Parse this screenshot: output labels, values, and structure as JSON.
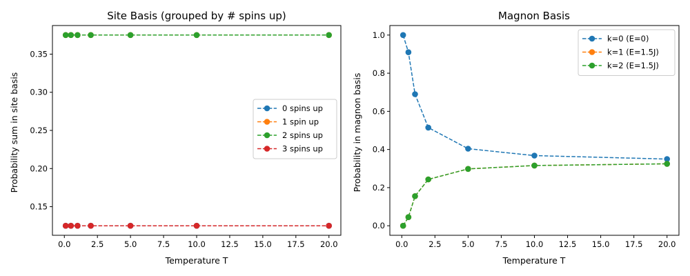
{
  "colors": {
    "blue": "#1f77b4",
    "orange": "#ff7f0e",
    "green": "#2ca02c",
    "red": "#d62728",
    "axes": "#000000",
    "legend_border": "#cccccc",
    "background": "#ffffff"
  },
  "chart_data": [
    {
      "type": "line",
      "title": "Site Basis (grouped by # spins up)",
      "xlabel": "Temperature T",
      "ylabel": "Probability sum in site basis",
      "xlim": [
        -0.9,
        20.9
      ],
      "ylim": [
        0.1125,
        0.3875
      ],
      "xticks": [
        0.0,
        2.5,
        5.0,
        7.5,
        10.0,
        12.5,
        15.0,
        17.5,
        20.0
      ],
      "xtick_labels": [
        "0.0",
        "2.5",
        "5.0",
        "7.5",
        "10.0",
        "12.5",
        "15.0",
        "17.5",
        "20.0"
      ],
      "yticks": [
        0.15,
        0.2,
        0.25,
        0.3,
        0.35
      ],
      "ytick_labels": [
        "0.15",
        "0.20",
        "0.25",
        "0.30",
        "0.35"
      ],
      "grid": false,
      "legend_position": "center-right",
      "x": [
        0.1,
        0.5,
        1.0,
        2.0,
        5.0,
        10.0,
        20.0
      ],
      "series": [
        {
          "name": "0 spins up",
          "color": "#1f77b4",
          "values": [
            0.125,
            0.125,
            0.125,
            0.125,
            0.125,
            0.125,
            0.125
          ]
        },
        {
          "name": "1 spin up",
          "color": "#ff7f0e",
          "values": [
            0.375,
            0.375,
            0.375,
            0.375,
            0.375,
            0.375,
            0.375
          ]
        },
        {
          "name": "2 spins up",
          "color": "#2ca02c",
          "values": [
            0.375,
            0.375,
            0.375,
            0.375,
            0.375,
            0.375,
            0.375
          ]
        },
        {
          "name": "3 spins up",
          "color": "#d62728",
          "values": [
            0.125,
            0.125,
            0.125,
            0.125,
            0.125,
            0.125,
            0.125
          ]
        }
      ]
    },
    {
      "type": "line",
      "title": "Magnon Basis",
      "xlabel": "Temperature T",
      "ylabel": "Probability in magnon basis",
      "xlim": [
        -0.9,
        20.9
      ],
      "ylim": [
        -0.05,
        1.05
      ],
      "xticks": [
        0.0,
        2.5,
        5.0,
        7.5,
        10.0,
        12.5,
        15.0,
        17.5,
        20.0
      ],
      "xtick_labels": [
        "0.0",
        "2.5",
        "5.0",
        "7.5",
        "10.0",
        "12.5",
        "15.0",
        "17.5",
        "20.0"
      ],
      "yticks": [
        0.0,
        0.2,
        0.4,
        0.6,
        0.8,
        1.0
      ],
      "ytick_labels": [
        "0.0",
        "0.2",
        "0.4",
        "0.6",
        "0.8",
        "1.0"
      ],
      "grid": false,
      "legend_position": "upper-right",
      "x": [
        0.1,
        0.5,
        1.0,
        2.0,
        5.0,
        10.0,
        20.0
      ],
      "series": [
        {
          "name": "k=0 (E=0)",
          "color": "#1f77b4",
          "values": [
            1.0,
            0.91,
            0.69,
            0.515,
            0.404,
            0.368,
            0.35
          ]
        },
        {
          "name": "k=1 (E=1.5J)",
          "color": "#ff7f0e",
          "values": [
            0.0,
            0.045,
            0.155,
            0.243,
            0.298,
            0.316,
            0.325
          ]
        },
        {
          "name": "k=2 (E=1.5J)",
          "color": "#2ca02c",
          "values": [
            0.0,
            0.045,
            0.155,
            0.243,
            0.298,
            0.316,
            0.325
          ]
        }
      ]
    }
  ]
}
